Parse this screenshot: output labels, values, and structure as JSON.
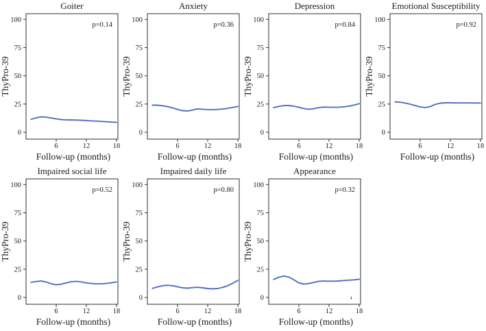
{
  "figure": {
    "ylabel": "ThyPro-39",
    "xlabel": "Follow-up (months)"
  },
  "colors": {
    "line": "#4a70c4",
    "axis": "#2e2e2e",
    "text": "#1b1b1b",
    "background": "#ffffff"
  },
  "chart_data": [
    {
      "type": "line",
      "title": "Goiter",
      "p_label": "p=0.14",
      "xlabel": "Follow-up (months)",
      "ylabel": "ThyPro-39",
      "xticks": [
        6,
        12,
        18
      ],
      "yticks": [
        0,
        25,
        50,
        75,
        100
      ],
      "xlim": [
        0,
        18.5
      ],
      "ylim": [
        -6,
        105
      ],
      "x": [
        1,
        2,
        3,
        4,
        5,
        6,
        7,
        8,
        9,
        10,
        11,
        12,
        13,
        14,
        15,
        16,
        17,
        18
      ],
      "y": [
        11.5,
        12.8,
        13.6,
        13.4,
        12.6,
        11.9,
        11.3,
        11.0,
        10.9,
        10.8,
        10.6,
        10.4,
        10.1,
        9.9,
        9.6,
        9.3,
        9.0,
        8.8
      ]
    },
    {
      "type": "line",
      "title": "Anxiety",
      "p_label": "p=0.36",
      "xlabel": "Follow-up (months)",
      "ylabel": "ThyPro-39",
      "xticks": [
        6,
        12,
        18
      ],
      "yticks": [
        0,
        25,
        50,
        75,
        100
      ],
      "xlim": [
        0,
        18.5
      ],
      "ylim": [
        -6,
        105
      ],
      "x": [
        1,
        2,
        3,
        4,
        5,
        6,
        7,
        8,
        9,
        10,
        11,
        12,
        13,
        14,
        15,
        16,
        17,
        18
      ],
      "y": [
        24.0,
        24.0,
        23.5,
        22.7,
        21.6,
        20.2,
        19.1,
        18.9,
        19.7,
        20.7,
        20.4,
        20.1,
        20.0,
        20.2,
        20.6,
        21.2,
        22.0,
        22.9
      ]
    },
    {
      "type": "line",
      "title": "Depression",
      "p_label": "p=0.84",
      "xlabel": "Follow-up (months)",
      "ylabel": "ThyPro-39",
      "xticks": [
        6,
        12,
        18
      ],
      "yticks": [
        0,
        25,
        50,
        75,
        100
      ],
      "xlim": [
        0,
        18.5
      ],
      "ylim": [
        -6,
        105
      ],
      "x": [
        1,
        2,
        3,
        4,
        5,
        6,
        7,
        8,
        9,
        10,
        11,
        12,
        13,
        14,
        15,
        16,
        17,
        18
      ],
      "y": [
        21.8,
        22.9,
        23.6,
        23.7,
        23.1,
        22.1,
        21.0,
        20.4,
        20.9,
        21.9,
        22.3,
        22.2,
        22.1,
        22.2,
        22.6,
        23.2,
        24.1,
        25.3
      ]
    },
    {
      "type": "line",
      "title": "Emotional Susceptibility",
      "p_label": "p=0.92",
      "xlabel": "Follow-up (months)",
      "ylabel": "ThyPro-39",
      "xticks": [
        6,
        12,
        18
      ],
      "yticks": [
        0,
        25,
        50,
        75,
        100
      ],
      "xlim": [
        0,
        18.5
      ],
      "ylim": [
        -6,
        105
      ],
      "x": [
        1,
        2,
        3,
        4,
        5,
        6,
        7,
        8,
        9,
        10,
        11,
        12,
        13,
        14,
        15,
        16,
        17,
        18
      ],
      "y": [
        26.9,
        26.6,
        25.9,
        24.9,
        23.6,
        22.4,
        21.9,
        22.7,
        24.7,
        25.8,
        26.1,
        26.1,
        26.0,
        26.0,
        26.0,
        26.0,
        25.9,
        25.9
      ]
    },
    {
      "type": "line",
      "title": "Impaired social life",
      "p_label": "p=0.52",
      "xlabel": "Follow-up (months)",
      "ylabel": "ThyPro-39",
      "xticks": [
        6,
        12,
        18
      ],
      "yticks": [
        0,
        25,
        50,
        75,
        100
      ],
      "xlim": [
        0,
        18.5
      ],
      "ylim": [
        -6,
        105
      ],
      "x": [
        1,
        2,
        3,
        4,
        5,
        6,
        7,
        8,
        9,
        10,
        11,
        12,
        13,
        14,
        15,
        16,
        17,
        18
      ],
      "y": [
        13.4,
        14.1,
        14.5,
        13.7,
        12.1,
        11.2,
        11.7,
        12.9,
        13.9,
        14.2,
        13.7,
        12.9,
        12.3,
        12.0,
        12.0,
        12.4,
        13.0,
        13.7
      ]
    },
    {
      "type": "line",
      "title": "Impaired daily life",
      "p_label": "p=0.80",
      "xlabel": "Follow-up (months)",
      "ylabel": "ThyPro-39",
      "xticks": [
        6,
        12,
        18
      ],
      "yticks": [
        0,
        25,
        50,
        75,
        100
      ],
      "xlim": [
        0,
        18.5
      ],
      "ylim": [
        -6,
        105
      ],
      "x": [
        1,
        2,
        3,
        4,
        5,
        6,
        7,
        8,
        9,
        10,
        11,
        12,
        13,
        14,
        15,
        16,
        17,
        18
      ],
      "y": [
        8.0,
        9.3,
        10.4,
        10.8,
        10.4,
        9.5,
        8.5,
        8.2,
        8.7,
        9.0,
        8.5,
        7.9,
        7.6,
        7.9,
        8.9,
        10.4,
        12.6,
        15.1
      ]
    },
    {
      "type": "line",
      "title": "Appearance",
      "p_label": "p=0.32",
      "xlabel": "Follow-up (months)",
      "ylabel": "ThyPro-39",
      "xticks": [
        6,
        12,
        18
      ],
      "yticks": [
        0,
        25,
        50,
        75,
        100
      ],
      "xlim": [
        0,
        18.5
      ],
      "ylim": [
        -6,
        105
      ],
      "x": [
        1,
        2,
        3,
        4,
        5,
        6,
        7,
        8,
        9,
        10,
        11,
        12,
        13,
        14,
        15,
        16,
        17,
        18
      ],
      "y": [
        15.9,
        17.9,
        18.9,
        18.1,
        15.6,
        12.9,
        11.8,
        12.3,
        13.3,
        14.3,
        14.5,
        14.4,
        14.4,
        14.6,
        15.0,
        15.3,
        15.6,
        16.1
      ],
      "stray_mark": {
        "x": 16.4,
        "y": -0.5
      }
    }
  ]
}
